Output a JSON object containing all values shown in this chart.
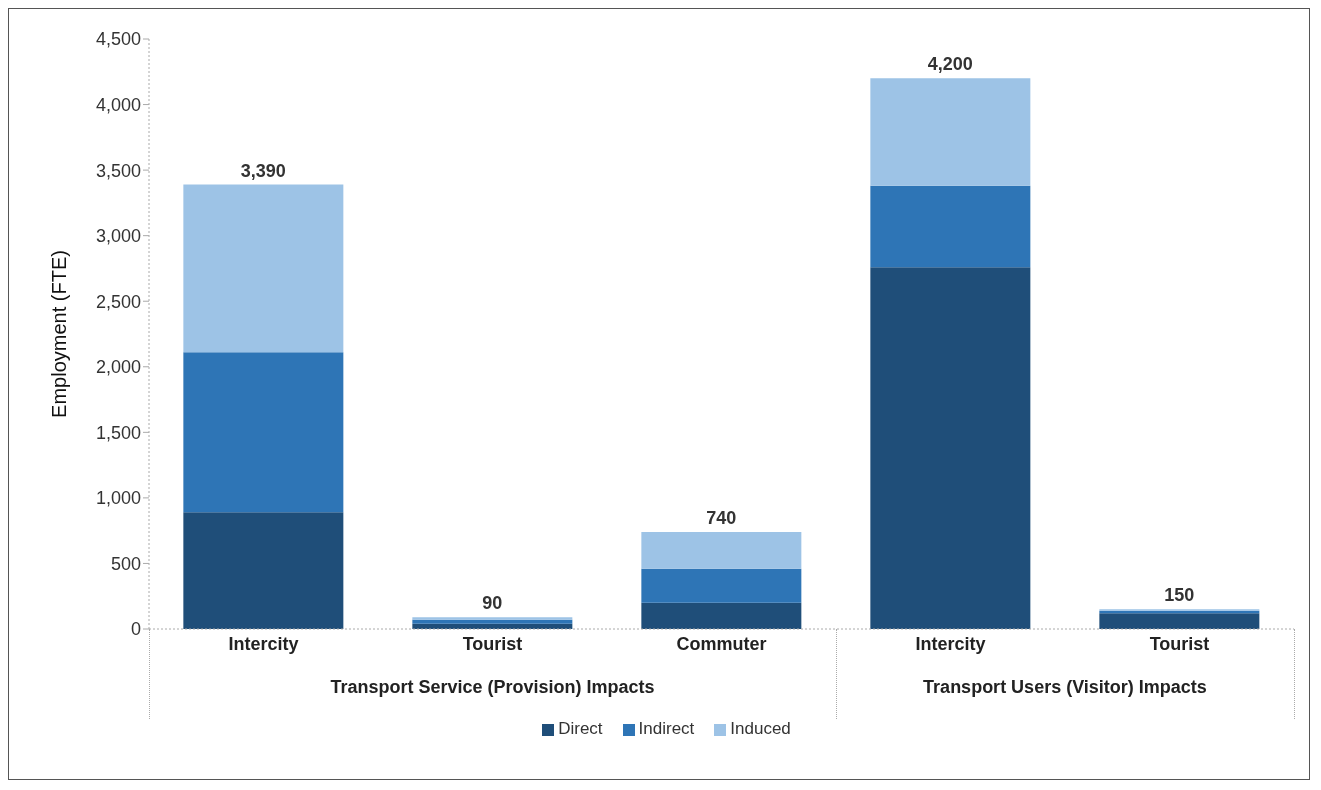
{
  "chart_data": {
    "type": "bar",
    "stacked": true,
    "ylabel": "Employment (FTE)",
    "categories": [
      "Intercity",
      "Tourist",
      "Commuter",
      "Intercity",
      "Tourist"
    ],
    "series": [
      {
        "name": "Direct",
        "color": "#1f4e79",
        "values": [
          890,
          40,
          200,
          2760,
          120
        ]
      },
      {
        "name": "Indirect",
        "color": "#2e75b6",
        "values": [
          1220,
          30,
          260,
          620,
          20
        ]
      },
      {
        "name": "Induced",
        "color": "#9dc3e6",
        "values": [
          1280,
          20,
          280,
          820,
          10
        ]
      }
    ],
    "totals": [
      "3,390",
      "90",
      "740",
      "4,200",
      "150"
    ],
    "annotations": [
      "Transport Service (Provision) Impacts",
      "Transport Users (Visitor) Impacts"
    ],
    "ylim": [
      0,
      4500
    ],
    "yticks": [
      0,
      500,
      {
        "value": 1000,
        "label": "1,000"
      },
      {
        "value": 1500,
        "label": "1,500"
      },
      {
        "value": 2000,
        "label": "2,000"
      },
      {
        "value": 2500,
        "label": "2,500"
      },
      {
        "value": 3000,
        "label": "3,000"
      },
      {
        "value": 3500,
        "label": "3,500"
      },
      {
        "value": 4000,
        "label": "4,000"
      },
      {
        "value": 4500,
        "label": "4,500"
      }
    ],
    "grid": false,
    "legend": "bottom"
  }
}
